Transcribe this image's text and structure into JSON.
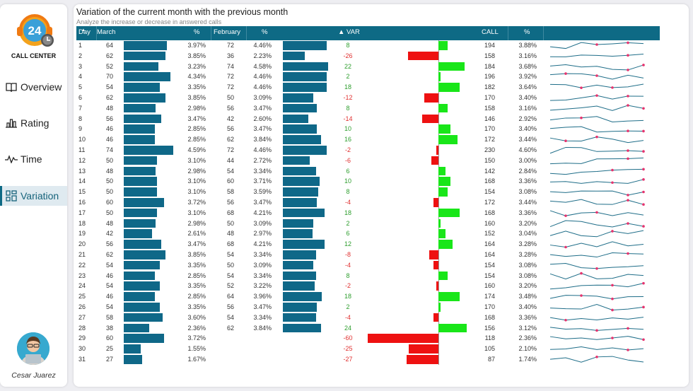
{
  "sidebar": {
    "logo_number": "24",
    "brand": "CALL CENTER",
    "nav": [
      {
        "label": "Overview",
        "icon": "book-icon",
        "active": false
      },
      {
        "label": "Rating",
        "icon": "bar-chart-icon",
        "active": false
      },
      {
        "label": "Time",
        "icon": "pulse-icon",
        "active": false
      },
      {
        "label": "Variation",
        "icon": "dashboard-icon",
        "active": true
      }
    ],
    "user_name": "Cesar Juarez"
  },
  "main": {
    "title": "Variation of the current month with the previous month",
    "subtitle": "Analyze the increase or decrease in answered calls",
    "headers": {
      "day": "Day",
      "march": "March",
      "pct1": "%",
      "february": "February",
      "pct2": "%",
      "var": "▲ VAR",
      "call": "CALL",
      "pct3": "%"
    }
  },
  "colors": {
    "header_bg": "#0e6a85",
    "bar": "#0f6888",
    "positive": "#19e619",
    "negative": "#ee1111",
    "positive_text": "#2e9e2e",
    "negative_text": "#e03030",
    "spark_line": "#1e6d88",
    "spark_dot": "#e6336e"
  },
  "chart_data": {
    "type": "table",
    "rows": [
      {
        "day": "1",
        "march": "64",
        "mpct": "3.97%",
        "feb": "72",
        "fpct": "4.46%",
        "var": "8",
        "call": "194",
        "cpct": "3.88%"
      },
      {
        "day": "2",
        "march": "62",
        "mpct": "3.85%",
        "feb": "36",
        "fpct": "2.23%",
        "var": "-26",
        "call": "158",
        "cpct": "3.16%"
      },
      {
        "day": "3",
        "march": "52",
        "mpct": "3.23%",
        "feb": "74",
        "fpct": "4.58%",
        "var": "22",
        "call": "184",
        "cpct": "3.68%"
      },
      {
        "day": "4",
        "march": "70",
        "mpct": "4.34%",
        "feb": "72",
        "fpct": "4.46%",
        "var": "2",
        "call": "196",
        "cpct": "3.92%"
      },
      {
        "day": "5",
        "march": "54",
        "mpct": "3.35%",
        "feb": "72",
        "fpct": "4.46%",
        "var": "18",
        "call": "182",
        "cpct": "3.64%"
      },
      {
        "day": "6",
        "march": "62",
        "mpct": "3.85%",
        "feb": "50",
        "fpct": "3.09%",
        "var": "-12",
        "call": "170",
        "cpct": "3.40%"
      },
      {
        "day": "7",
        "march": "48",
        "mpct": "2.98%",
        "feb": "56",
        "fpct": "3.47%",
        "var": "8",
        "call": "158",
        "cpct": "3.16%"
      },
      {
        "day": "8",
        "march": "56",
        "mpct": "3.47%",
        "feb": "42",
        "fpct": "2.60%",
        "var": "-14",
        "call": "146",
        "cpct": "2.92%"
      },
      {
        "day": "9",
        "march": "46",
        "mpct": "2.85%",
        "feb": "56",
        "fpct": "3.47%",
        "var": "10",
        "call": "170",
        "cpct": "3.40%"
      },
      {
        "day": "10",
        "march": "46",
        "mpct": "2.85%",
        "feb": "62",
        "fpct": "3.84%",
        "var": "16",
        "call": "172",
        "cpct": "3.44%"
      },
      {
        "day": "11",
        "march": "74",
        "mpct": "4.59%",
        "feb": "72",
        "fpct": "4.46%",
        "var": "-2",
        "call": "230",
        "cpct": "4.60%"
      },
      {
        "day": "12",
        "march": "50",
        "mpct": "3.10%",
        "feb": "44",
        "fpct": "2.72%",
        "var": "-6",
        "call": "150",
        "cpct": "3.00%"
      },
      {
        "day": "13",
        "march": "48",
        "mpct": "2.98%",
        "feb": "54",
        "fpct": "3.34%",
        "var": "6",
        "call": "142",
        "cpct": "2.84%"
      },
      {
        "day": "14",
        "march": "50",
        "mpct": "3.10%",
        "feb": "60",
        "fpct": "3.71%",
        "var": "10",
        "call": "168",
        "cpct": "3.36%"
      },
      {
        "day": "15",
        "march": "50",
        "mpct": "3.10%",
        "feb": "58",
        "fpct": "3.59%",
        "var": "8",
        "call": "154",
        "cpct": "3.08%"
      },
      {
        "day": "16",
        "march": "60",
        "mpct": "3.72%",
        "feb": "56",
        "fpct": "3.47%",
        "var": "-4",
        "call": "172",
        "cpct": "3.44%"
      },
      {
        "day": "17",
        "march": "50",
        "mpct": "3.10%",
        "feb": "68",
        "fpct": "4.21%",
        "var": "18",
        "call": "168",
        "cpct": "3.36%"
      },
      {
        "day": "18",
        "march": "48",
        "mpct": "2.98%",
        "feb": "50",
        "fpct": "3.09%",
        "var": "2",
        "call": "160",
        "cpct": "3.20%"
      },
      {
        "day": "19",
        "march": "42",
        "mpct": "2.61%",
        "feb": "48",
        "fpct": "2.97%",
        "var": "6",
        "call": "152",
        "cpct": "3.04%"
      },
      {
        "day": "20",
        "march": "56",
        "mpct": "3.47%",
        "feb": "68",
        "fpct": "4.21%",
        "var": "12",
        "call": "164",
        "cpct": "3.28%"
      },
      {
        "day": "21",
        "march": "62",
        "mpct": "3.85%",
        "feb": "54",
        "fpct": "3.34%",
        "var": "-8",
        "call": "164",
        "cpct": "3.28%"
      },
      {
        "day": "22",
        "march": "54",
        "mpct": "3.35%",
        "feb": "50",
        "fpct": "3.09%",
        "var": "-4",
        "call": "154",
        "cpct": "3.08%"
      },
      {
        "day": "23",
        "march": "46",
        "mpct": "2.85%",
        "feb": "54",
        "fpct": "3.34%",
        "var": "8",
        "call": "154",
        "cpct": "3.08%"
      },
      {
        "day": "24",
        "march": "54",
        "mpct": "3.35%",
        "feb": "52",
        "fpct": "3.22%",
        "var": "-2",
        "call": "160",
        "cpct": "3.20%"
      },
      {
        "day": "25",
        "march": "46",
        "mpct": "2.85%",
        "feb": "64",
        "fpct": "3.96%",
        "var": "18",
        "call": "174",
        "cpct": "3.48%"
      },
      {
        "day": "26",
        "march": "54",
        "mpct": "3.35%",
        "feb": "56",
        "fpct": "3.47%",
        "var": "2",
        "call": "170",
        "cpct": "3.40%"
      },
      {
        "day": "27",
        "march": "58",
        "mpct": "3.60%",
        "feb": "54",
        "fpct": "3.34%",
        "var": "-4",
        "call": "168",
        "cpct": "3.36%"
      },
      {
        "day": "28",
        "march": "38",
        "mpct": "2.36%",
        "feb": "62",
        "fpct": "3.84%",
        "var": "24",
        "call": "156",
        "cpct": "3.12%"
      },
      {
        "day": "29",
        "march": "60",
        "mpct": "3.72%",
        "feb": "",
        "fpct": "",
        "var": "-60",
        "call": "118",
        "cpct": "2.36%"
      },
      {
        "day": "30",
        "march": "25",
        "mpct": "1.55%",
        "feb": "",
        "fpct": "",
        "var": "-25",
        "call": "105",
        "cpct": "2.10%"
      },
      {
        "day": "31",
        "march": "27",
        "mpct": "1.67%",
        "feb": "",
        "fpct": "",
        "var": "-27",
        "call": "87",
        "cpct": "1.74%"
      }
    ]
  }
}
